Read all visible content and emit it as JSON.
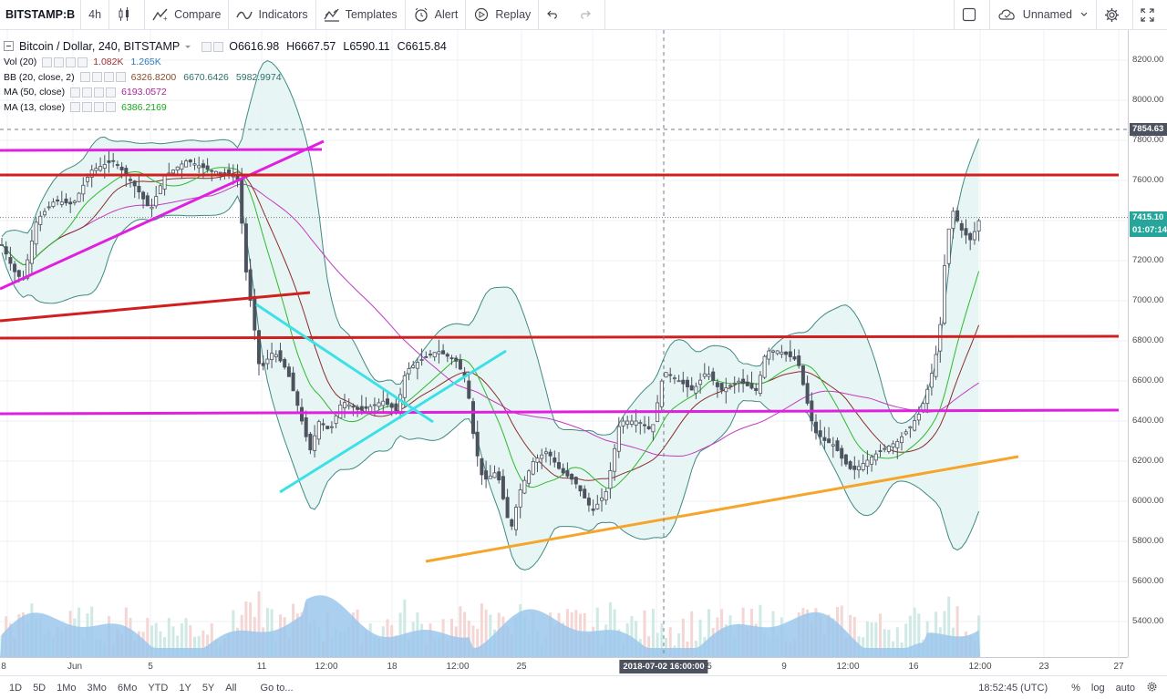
{
  "toolbar": {
    "symbol": "BITSTAMP:B",
    "interval": "4h",
    "compare": "Compare",
    "indicators": "Indicators",
    "templates": "Templates",
    "alert": "Alert",
    "replay": "Replay",
    "layout_name": "Unnamed"
  },
  "legend": {
    "title": "Bitcoin / Dollar, 240, BITSTAMP",
    "ohlc": [
      "O6616.98",
      "H6667.57",
      "L6590.11",
      "C6615.84"
    ],
    "indicators": [
      {
        "name": "Vol (20)",
        "values": [
          "1.082K",
          "1.265K"
        ],
        "colors": [
          "#a0302e",
          "#2f7ab8"
        ]
      },
      {
        "name": "BB (20, close, 2)",
        "values": [
          "6326.8200",
          "6670.6426",
          "5982.9974"
        ],
        "colors": [
          "#8c4a2b",
          "#2a6f6b",
          "#2a6f6b"
        ]
      },
      {
        "name": "MA (50, close)",
        "values": [
          "6193.0572"
        ],
        "colors": [
          "#b0209b"
        ]
      },
      {
        "name": "MA (13, close)",
        "values": [
          "6386.2169"
        ],
        "colors": [
          "#18a81c"
        ]
      }
    ]
  },
  "price_axis": {
    "labels": [
      "8200.00",
      "8000.00",
      "7800.00",
      "7600.00",
      "7400.00",
      "7200.00",
      "7000.00",
      "6800.00",
      "6600.00",
      "6400.00",
      "6200.00",
      "6000.00",
      "5800.00",
      "5600.00",
      "5400.00"
    ],
    "crosshair_price": "7854.63",
    "last_price": "7415.10",
    "countdown": "01:07:14"
  },
  "time_axis": {
    "labels": [
      "8",
      "Jun",
      "5",
      "11",
      "12:00",
      "18",
      "12:00",
      "25",
      "5",
      "9",
      "12:00",
      "16",
      "12:00",
      "23",
      "27"
    ],
    "crosshair_time": "2018-07-02 16:00:00"
  },
  "bottom_bar": {
    "ranges": [
      "1D",
      "5D",
      "1Mo",
      "3Mo",
      "6Mo",
      "YTD",
      "1Y",
      "5Y",
      "All"
    ],
    "goto": "Go to...",
    "clock": "18:52:45 (UTC)",
    "percent": "%",
    "log": "log",
    "auto": "auto"
  },
  "colors": {
    "up": "#26a69a",
    "down": "#ef5350",
    "candle": "#4c525e",
    "bb_fill": "#e6f4f4",
    "bb_line": "#3d8a83",
    "ma13": "#2dba2d",
    "ma50": "#c23bc2",
    "bb_mid": "#8b2d2d",
    "red_line": "#d11f1f",
    "magenta_line": "#e020e0",
    "cyan_line": "#3ee0e8",
    "orange_line": "#f5a52a",
    "volume": "#9cc7ec"
  }
}
